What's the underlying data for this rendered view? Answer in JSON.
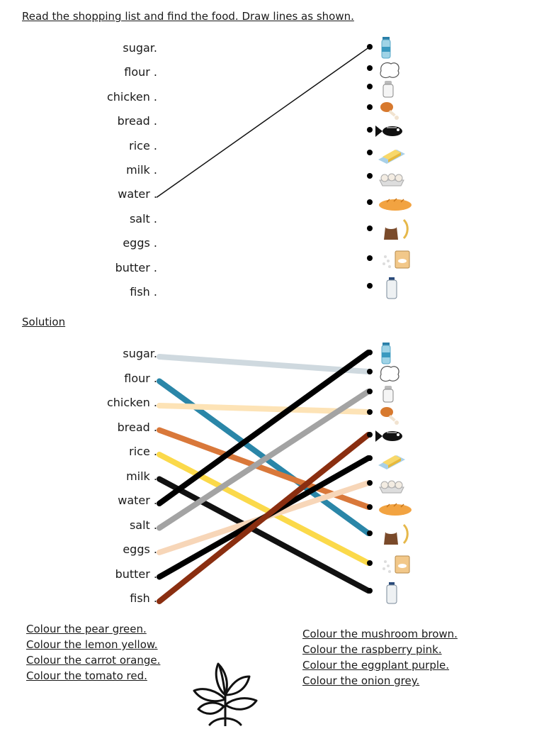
{
  "exercise": {
    "title": "Read the shopping list and find the food. Draw lines as shown.",
    "words": [
      "sugar.",
      "flour .",
      "chicken .",
      "bread .",
      "rice .",
      "milk .",
      "water .",
      "salt .",
      "eggs .",
      "butter .",
      "fish ."
    ],
    "foods": [
      "water-bottle-icon",
      "flour-bag-icon",
      "salt-shaker-icon",
      "chicken-leg-icon",
      "fish-icon",
      "butter-icon",
      "eggs-icon",
      "bread-loaf-icon",
      "sugar-bag-icon",
      "rice-icon",
      "milk-bottle-icon"
    ],
    "example_match": {
      "word": "water",
      "food": "water-bottle-icon"
    }
  },
  "solution": {
    "title": "Solution",
    "words": [
      "sugar.",
      "flour .",
      "chicken .",
      "bread .",
      "rice .",
      "milk .",
      "water .",
      "salt .",
      "eggs .",
      "butter .",
      "fish ."
    ],
    "matches": [
      {
        "word": "sugar",
        "food": "flour-bag-icon",
        "color": "#cfd9df"
      },
      {
        "word": "flour",
        "food": "sugar-bag-icon",
        "color": "#2a86a8"
      },
      {
        "word": "chicken",
        "food": "chicken-leg-icon",
        "color": "#fde3b6"
      },
      {
        "word": "bread",
        "food": "bread-loaf-icon",
        "color": "#d9783a"
      },
      {
        "word": "rice",
        "food": "rice-icon",
        "color": "#fbd94a"
      },
      {
        "word": "milk",
        "food": "milk-bottle-icon",
        "color": "#111111"
      },
      {
        "word": "water",
        "food": "water-bottle-icon",
        "color": "#000000"
      },
      {
        "word": "salt",
        "food": "salt-shaker-icon",
        "color": "#a3a3a3"
      },
      {
        "word": "eggs",
        "food": "eggs-icon",
        "color": "#f7d6b8"
      },
      {
        "word": "butter",
        "food": "butter-icon",
        "color": "#000000"
      },
      {
        "word": "fish",
        "food": "fish-icon",
        "color": "#8a2e10"
      }
    ]
  },
  "instructions_left": [
    "Colour the pear green.",
    "Colour the lemon yellow.",
    "Colour the carrot orange.",
    "Colour the tomato red. "
  ],
  "instructions_right": [
    "Colour the mushroom brown.",
    "Colour the raspberry pink.",
    "Colour the eggplant purple.",
    "Colour the onion grey. "
  ],
  "illustration": "plant-outline-icon"
}
